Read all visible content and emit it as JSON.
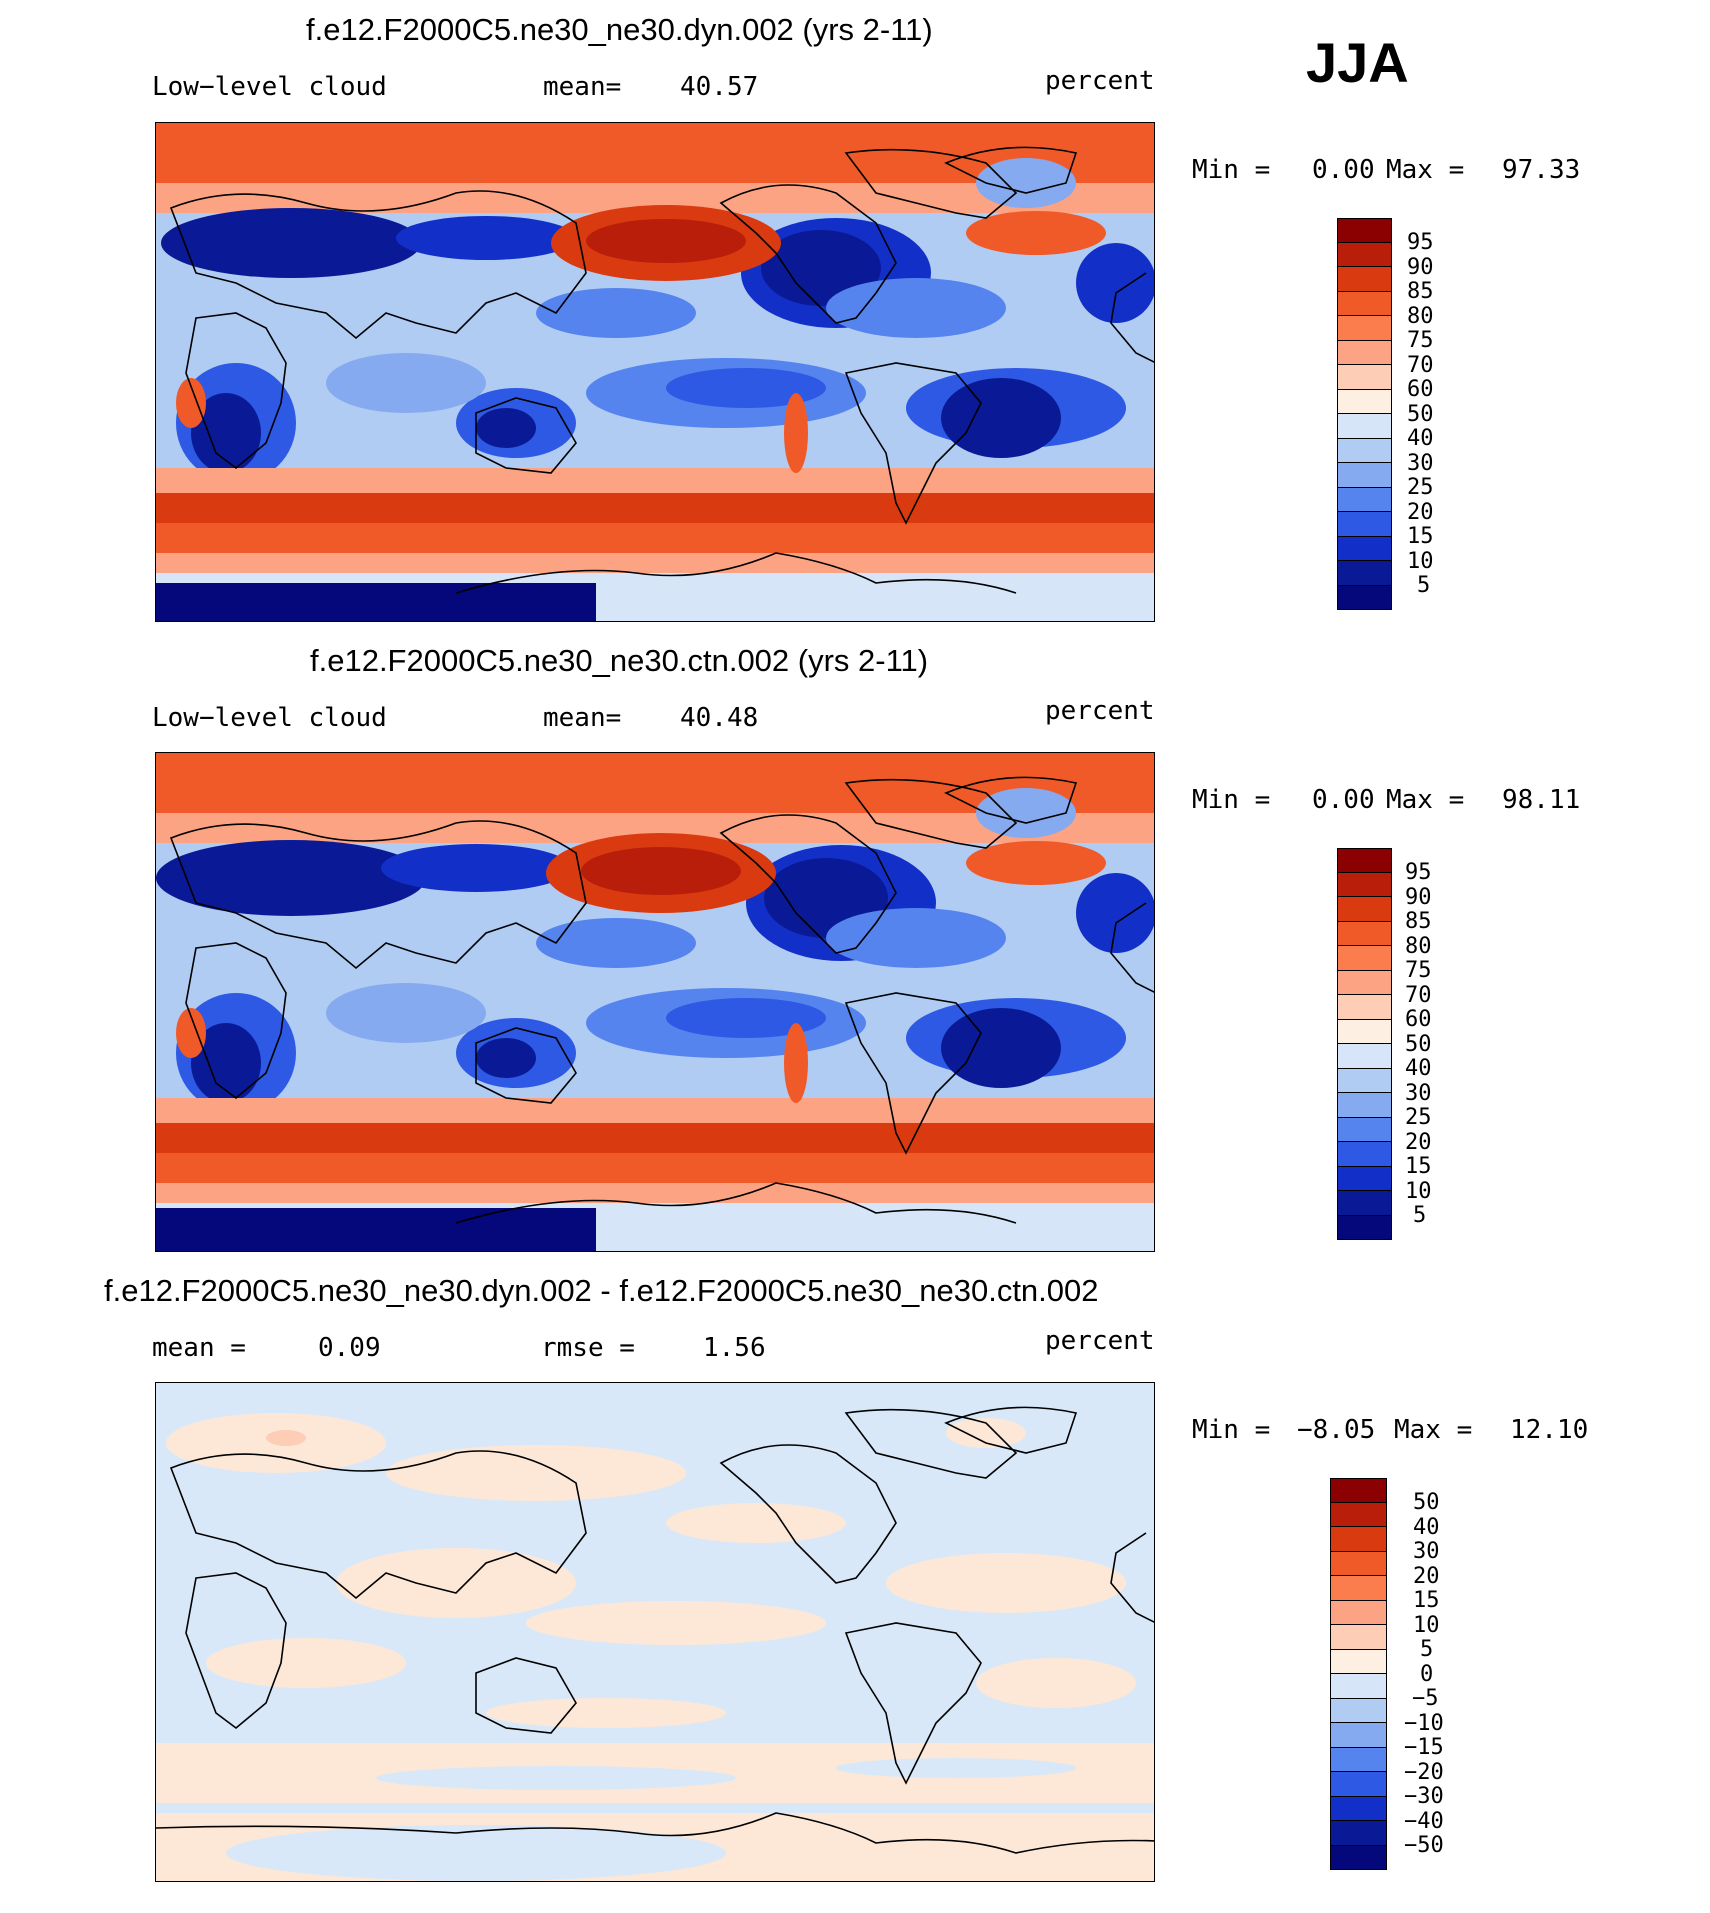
{
  "season": "JJA",
  "panels": [
    {
      "title": "f.e12.F2000C5.ne30_ne30.dyn.002 (yrs 2-11)",
      "left_label": "Low−level cloud",
      "mid_label": "mean=",
      "mid_value": "40.57",
      "units": "percent",
      "min_label": "Min =",
      "min_value": "0.00",
      "max_label": "Max =",
      "max_value": "97.33",
      "colorbar_labels": [
        "95",
        "90",
        "85",
        "80",
        "75",
        "70",
        "60",
        "50",
        "40",
        "30",
        "25",
        "20",
        "15",
        "10",
        "5"
      ]
    },
    {
      "title": "f.e12.F2000C5.ne30_ne30.ctn.002 (yrs 2-11)",
      "left_label": "Low−level cloud",
      "mid_label": "mean=",
      "mid_value": "40.48",
      "units": "percent",
      "min_label": "Min =",
      "min_value": "0.00",
      "max_label": "Max =",
      "max_value": "98.11",
      "colorbar_labels": [
        "95",
        "90",
        "85",
        "80",
        "75",
        "70",
        "60",
        "50",
        "40",
        "30",
        "25",
        "20",
        "15",
        "10",
        "5"
      ]
    },
    {
      "title": "f.e12.F2000C5.ne30_ne30.dyn.002 - f.e12.F2000C5.ne30_ne30.ctn.002",
      "left_label": "mean =",
      "left_value": "0.09",
      "mid_label": "rmse =",
      "mid_value": "1.56",
      "units": "percent",
      "min_label": "Min =",
      "min_value": "−8.05",
      "max_label": "Max =",
      "max_value": "12.10",
      "colorbar_labels": [
        "50",
        "40",
        "30",
        "20",
        "15",
        "10",
        "5",
        "0",
        "−5",
        "−10",
        "−15",
        "−20",
        "−30",
        "−40",
        "−50"
      ]
    }
  ],
  "colorbar_colors": [
    "#8b0000",
    "#b81e0a",
    "#d93a10",
    "#f05a28",
    "#fb7d4e",
    "#fca383",
    "#fdcdb5",
    "#fdf0e2",
    "#d6e6f8",
    "#b0ccf3",
    "#85aaf0",
    "#5584ee",
    "#2d59e4",
    "#1230c8",
    "#0a1a96",
    "#04087a"
  ],
  "diff_colors": [
    "#fde8d8",
    "#d8e8f8"
  ]
}
